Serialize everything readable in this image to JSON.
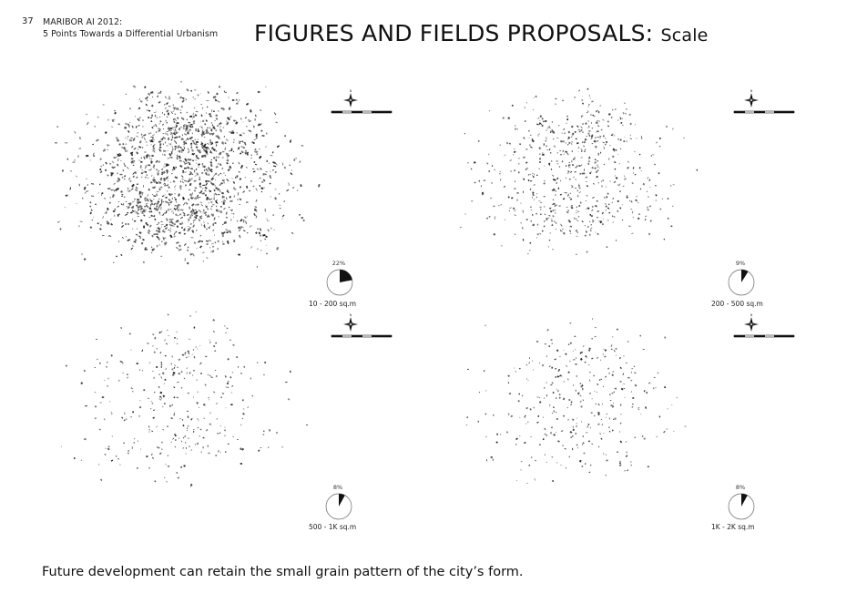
{
  "page": {
    "number": "37",
    "header_line1": "MARIBOR AI 2012:",
    "header_line2": "5 Points Towards a Differential Urbanism",
    "title_main": "FIGURES AND FIELDS PROPOSALS:",
    "title_sub": "Scale",
    "caption": "Future development can retain the small grain pattern of the city’s form."
  },
  "panels": [
    {
      "range": "10 - 200 sq.m",
      "percent_label": "22%",
      "percent": 22,
      "density": "high"
    },
    {
      "range": "200 - 500 sq.m",
      "percent_label": "9%",
      "percent": 9,
      "density": "medium"
    },
    {
      "range": "500 - 1K sq.m",
      "percent_label": "8%",
      "percent": 8,
      "density": "low"
    },
    {
      "range": "1K - 2K sq.m",
      "percent_label": "8%",
      "percent": 8,
      "density": "low"
    }
  ],
  "icons": {
    "compass": "north-arrow-icon",
    "scale": "scale-bar-icon",
    "pie": "pie-chart-icon"
  }
}
